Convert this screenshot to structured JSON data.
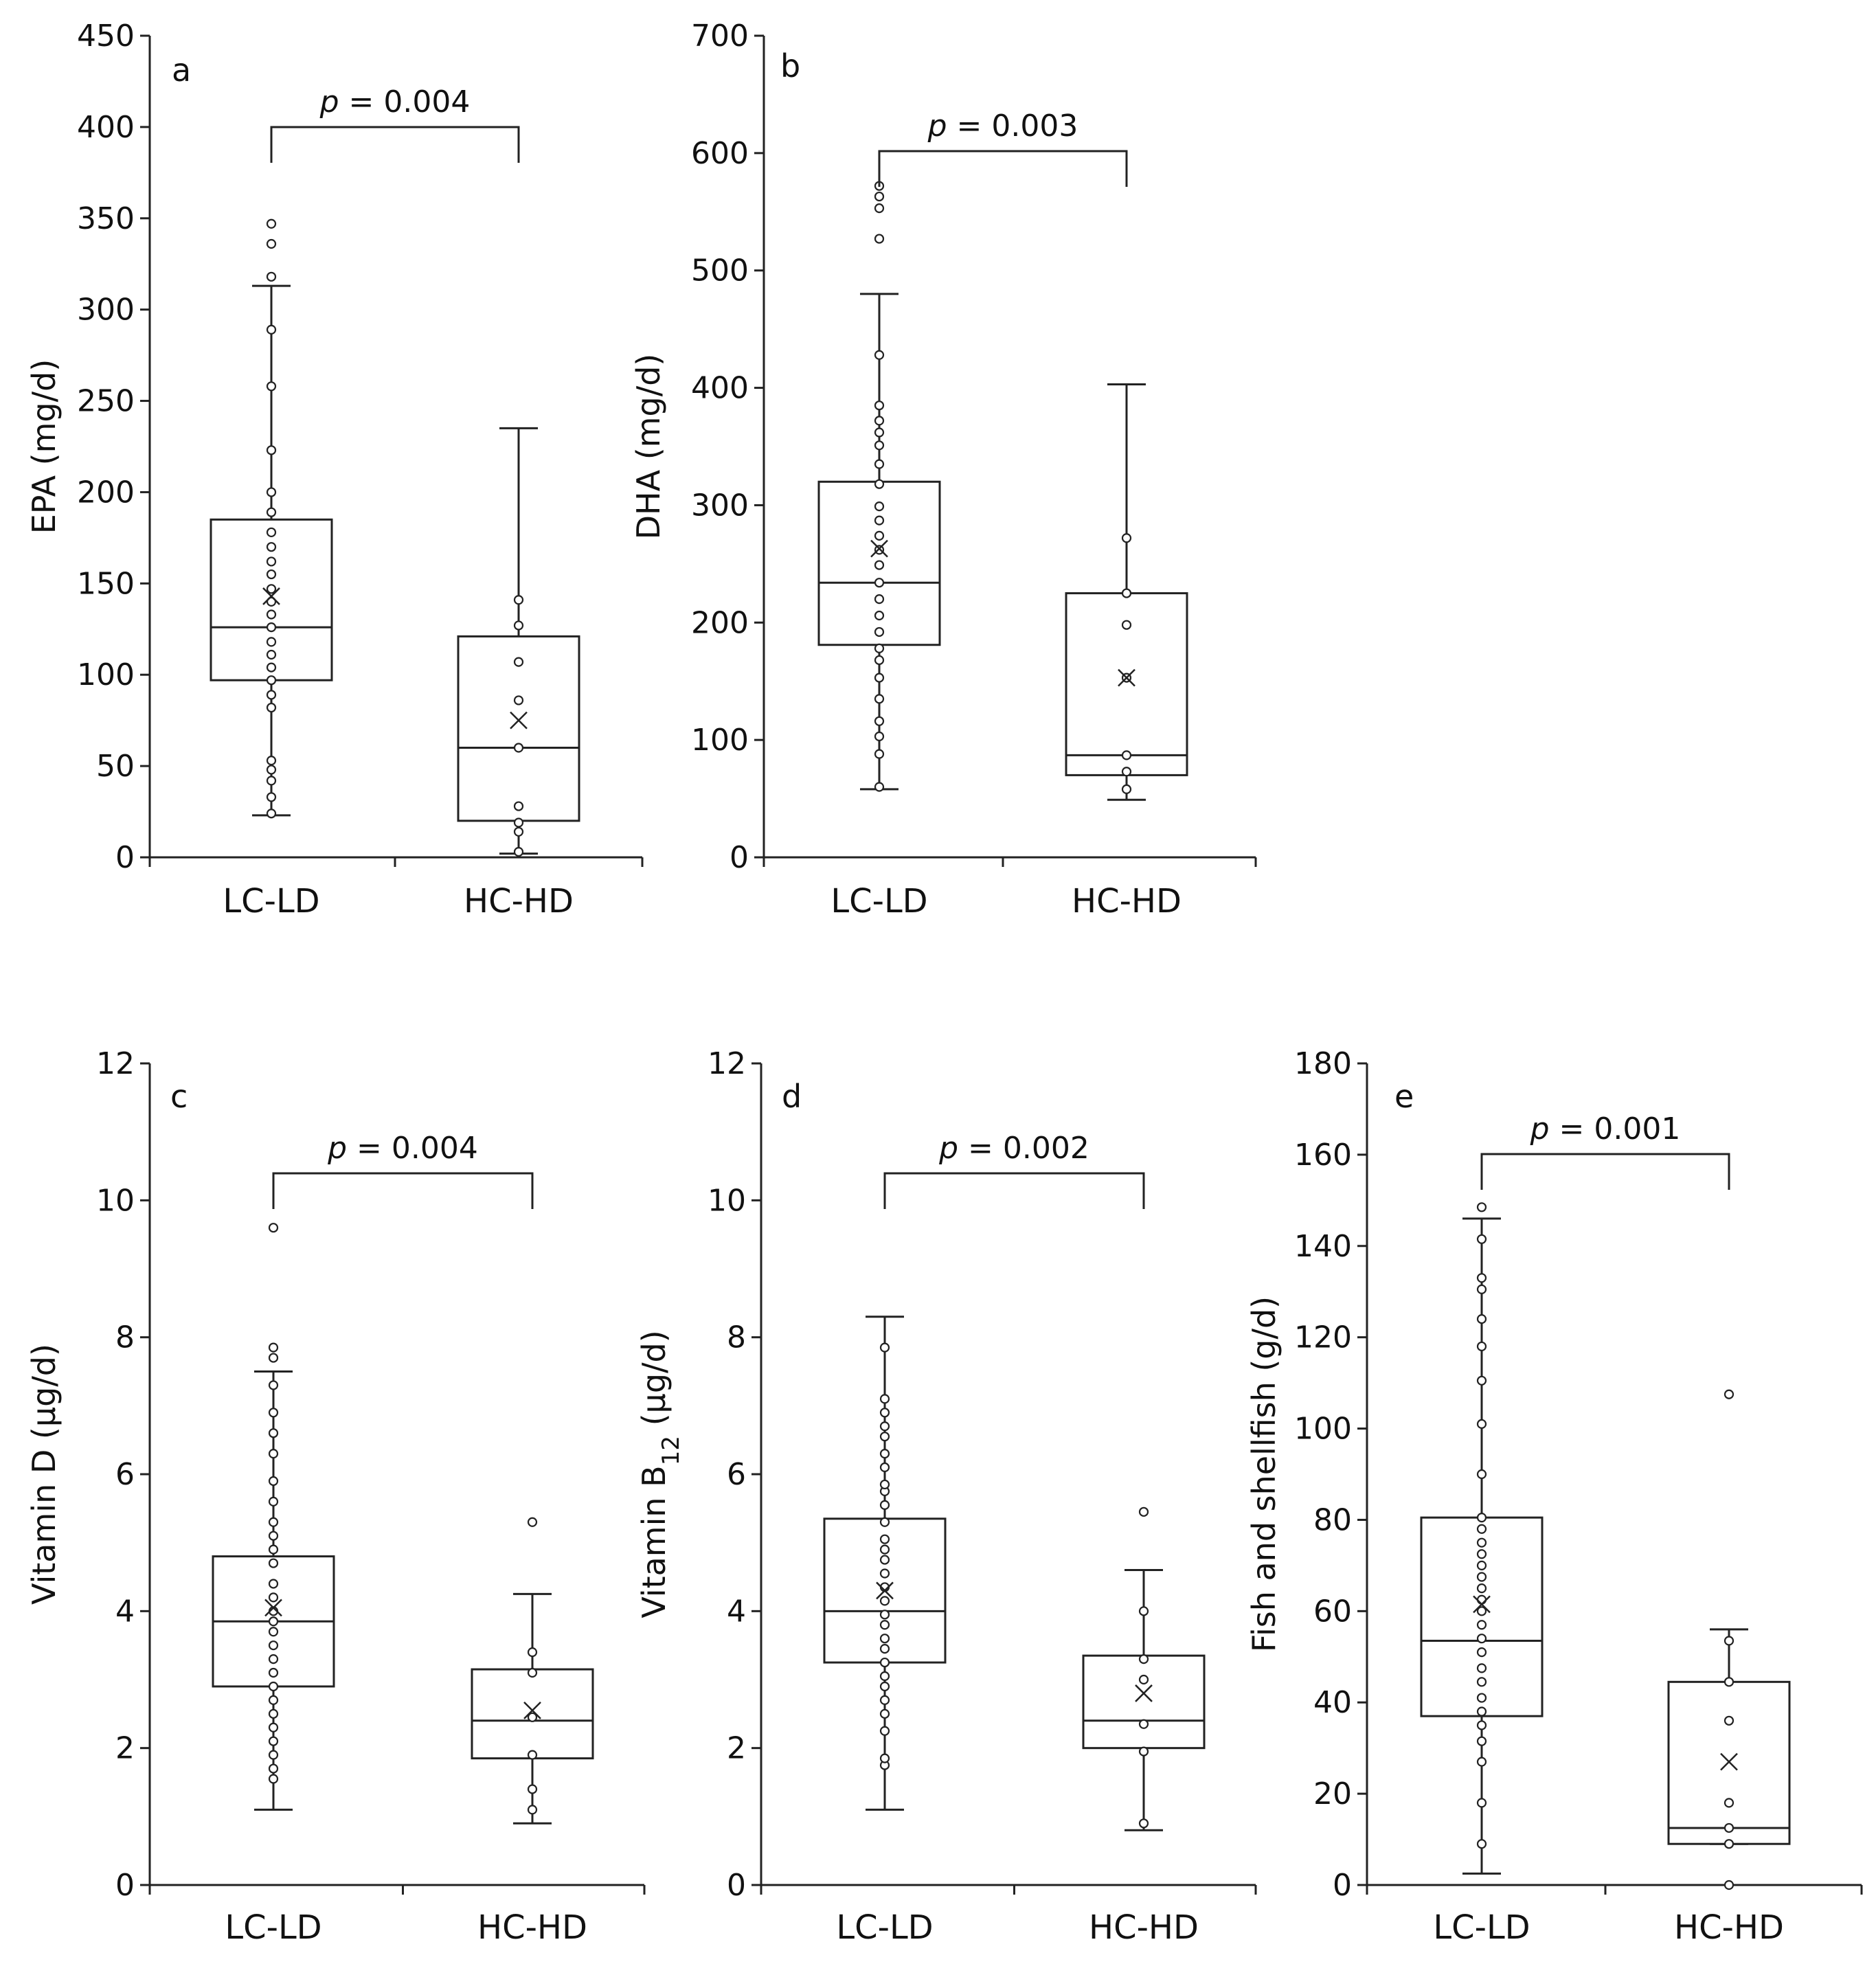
{
  "chart_data": [
    {
      "panel": "a",
      "type": "box",
      "ylabel": "EPA (mg/d)",
      "ylabel_sub": "",
      "ylabel_after": "",
      "ylim": [
        0,
        450
      ],
      "yticks": [
        0,
        50,
        100,
        150,
        200,
        250,
        300,
        350,
        400,
        450
      ],
      "categories": [
        "LC-LD",
        "HC-HD"
      ],
      "comparison": {
        "p_symbol": "p",
        "p_text": " = 0.004"
      },
      "groups": [
        {
          "name": "LC-LD",
          "whisker_low": 23,
          "q1": 97,
          "median": 126,
          "q3": 185,
          "whisker_high": 313,
          "mean": 143,
          "points": [
            24,
            33,
            42,
            48,
            53,
            82,
            89,
            97,
            104,
            111,
            118,
            126,
            133,
            140,
            147,
            155,
            162,
            170,
            178,
            189,
            200,
            223,
            258,
            289,
            318,
            336,
            347
          ]
        },
        {
          "name": "HC-HD",
          "whisker_low": 2,
          "q1": 20,
          "median": 60,
          "q3": 121,
          "whisker_high": 235,
          "mean": 75,
          "points": [
            3,
            14,
            19,
            28,
            60,
            86,
            107,
            127,
            141
          ]
        }
      ]
    },
    {
      "panel": "b",
      "type": "box",
      "ylabel": "DHA (mg/d)",
      "ylabel_sub": "",
      "ylabel_after": "",
      "ylim": [
        0,
        700
      ],
      "yticks": [
        0,
        100,
        200,
        300,
        400,
        500,
        600,
        700
      ],
      "categories": [
        "LC-LD",
        "HC-HD"
      ],
      "comparison": {
        "p_symbol": "p",
        "p_text": " = 0.003"
      },
      "groups": [
        {
          "name": "LC-LD",
          "whisker_low": 58,
          "q1": 181,
          "median": 234,
          "q3": 320,
          "whisker_high": 480,
          "mean": 263,
          "points": [
            60,
            88,
            103,
            116,
            135,
            153,
            168,
            178,
            192,
            206,
            220,
            234,
            249,
            262,
            274,
            287,
            299,
            318,
            335,
            351,
            362,
            372,
            385,
            428,
            527,
            553,
            563,
            572
          ]
        },
        {
          "name": "HC-HD",
          "whisker_low": 49,
          "q1": 70,
          "median": 87,
          "q3": 225,
          "whisker_high": 403,
          "mean": 153,
          "points": [
            58,
            73,
            87,
            153,
            198,
            225,
            272
          ]
        }
      ]
    },
    {
      "panel": "c",
      "type": "box",
      "ylabel": "Vitamin D (µg/d)",
      "ylabel_sub": "",
      "ylabel_after": "",
      "ylim": [
        0,
        12
      ],
      "yticks": [
        0,
        2,
        4,
        6,
        8,
        10,
        12
      ],
      "categories": [
        "LC-LD",
        "HC-HD"
      ],
      "comparison": {
        "p_symbol": "p",
        "p_text": " = 0.004"
      },
      "groups": [
        {
          "name": "LC-LD",
          "whisker_low": 1.1,
          "q1": 2.9,
          "median": 3.85,
          "q3": 4.8,
          "whisker_high": 7.5,
          "mean": 4.05,
          "points": [
            1.55,
            1.7,
            1.9,
            2.1,
            2.3,
            2.5,
            2.7,
            2.9,
            3.1,
            3.3,
            3.5,
            3.7,
            3.85,
            4.0,
            4.2,
            4.4,
            4.7,
            4.9,
            5.1,
            5.3,
            5.6,
            5.9,
            6.3,
            6.6,
            6.9,
            7.3,
            7.7,
            7.85,
            9.6
          ]
        },
        {
          "name": "HC-HD",
          "whisker_low": 0.9,
          "q1": 1.85,
          "median": 2.4,
          "q3": 3.15,
          "whisker_high": 4.25,
          "mean": 2.55,
          "points": [
            1.1,
            1.4,
            1.9,
            2.45,
            3.1,
            3.4,
            5.3
          ]
        }
      ]
    },
    {
      "panel": "d",
      "type": "box",
      "ylabel": "Vitamin B",
      "ylabel_sub": "12",
      "ylabel_after": " (µg/d)",
      "ylim": [
        0,
        12
      ],
      "yticks": [
        0,
        2,
        4,
        6,
        8,
        10,
        12
      ],
      "categories": [
        "LC-LD",
        "HC-HD"
      ],
      "comparison": {
        "p_symbol": "p",
        "p_text": " = 0.002"
      },
      "groups": [
        {
          "name": "LC-LD",
          "whisker_low": 1.1,
          "q1": 3.25,
          "median": 4.0,
          "q3": 5.35,
          "whisker_high": 8.3,
          "mean": 4.3,
          "points": [
            1.75,
            1.85,
            2.25,
            2.5,
            2.7,
            2.9,
            3.05,
            3.25,
            3.45,
            3.6,
            3.8,
            3.95,
            4.15,
            4.35,
            4.55,
            4.75,
            4.9,
            5.05,
            5.3,
            5.55,
            5.75,
            5.85,
            6.1,
            6.3,
            6.55,
            6.7,
            6.9,
            7.1,
            7.85
          ]
        },
        {
          "name": "HC-HD",
          "whisker_low": 0.8,
          "q1": 2.0,
          "median": 2.4,
          "q3": 3.35,
          "whisker_high": 4.6,
          "mean": 2.8,
          "points": [
            0.9,
            1.95,
            2.35,
            3.0,
            3.3,
            4.0,
            5.45
          ]
        }
      ]
    },
    {
      "panel": "e",
      "type": "box",
      "ylabel": "Fish and shellfish (g/d)",
      "ylabel_sub": "",
      "ylabel_after": "",
      "ylim": [
        0,
        180
      ],
      "yticks": [
        0,
        20,
        40,
        60,
        80,
        100,
        120,
        140,
        160,
        180
      ],
      "categories": [
        "LC-LD",
        "HC-HD"
      ],
      "comparison": {
        "p_symbol": "p",
        "p_text": " = 0.001"
      },
      "groups": [
        {
          "name": "LC-LD",
          "whisker_low": 2.5,
          "q1": 37,
          "median": 53.5,
          "q3": 80.5,
          "whisker_high": 146,
          "mean": 61.5,
          "points": [
            9,
            18,
            27,
            31.5,
            35,
            38,
            41,
            44.5,
            47.5,
            51,
            54,
            57,
            60,
            62.5,
            65,
            67.5,
            70,
            72.5,
            75,
            78,
            80.5,
            90,
            101,
            110.5,
            118,
            124,
            130.5,
            133,
            141.5,
            148.5
          ]
        },
        {
          "name": "HC-HD",
          "whisker_low": 9,
          "q1": 9,
          "median": 12.5,
          "q3": 44.5,
          "whisker_high": 56,
          "mean": 27,
          "points": [
            0,
            9,
            12.5,
            18,
            36,
            44.5,
            53.5,
            107.5
          ]
        }
      ]
    }
  ]
}
